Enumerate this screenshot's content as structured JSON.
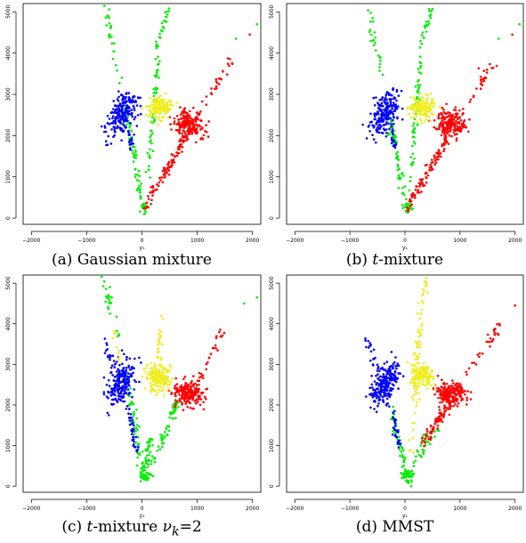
{
  "chart_data": [
    {
      "type": "scatter",
      "caption": {
        "label": "(a)",
        "text": "Gaussian mixture"
      },
      "xlabel": "y₁",
      "ylabel": "",
      "xlim": [
        -2150,
        2150
      ],
      "ylim": [
        -150,
        5200
      ],
      "xticks": [
        -2000,
        -1000,
        0,
        1000,
        2000
      ],
      "yticks": [
        0,
        1000,
        2000,
        3000,
        4000,
        5000
      ],
      "grid": false,
      "series": [
        {
          "color": "#0000ff",
          "centroid": [
            -350,
            2550
          ]
        },
        {
          "color": "#eeee22",
          "centroid": [
            300,
            2650
          ]
        },
        {
          "color": "#ff0000",
          "centroid": [
            900,
            2300
          ]
        },
        {
          "color": "#00ee00",
          "centroid": [
            150,
            2000
          ]
        }
      ]
    },
    {
      "type": "scatter",
      "caption": {
        "label": "(b)",
        "italic": "t",
        "text": "-mixture"
      },
      "xlabel": "y₁",
      "ylabel": "",
      "xlim": [
        -2150,
        2150
      ],
      "ylim": [
        -150,
        5200
      ],
      "xticks": [
        -2000,
        -1000,
        0,
        1000,
        2000
      ],
      "yticks": [
        0,
        1000,
        2000,
        3000,
        4000,
        5000
      ],
      "grid": false,
      "series": [
        {
          "color": "#0000ff",
          "centroid": [
            -350,
            2550
          ]
        },
        {
          "color": "#eeee22",
          "centroid": [
            300,
            2650
          ]
        },
        {
          "color": "#ff0000",
          "centroid": [
            900,
            2300
          ]
        },
        {
          "color": "#00ee00",
          "centroid": [
            150,
            2000
          ]
        }
      ]
    },
    {
      "type": "scatter",
      "caption": {
        "label": "(c)",
        "italic": "t",
        "text": "-mixture",
        "nu": "ν",
        "sub": "k",
        "eq": "=2"
      },
      "xlabel": "y₁",
      "ylabel": "",
      "xlim": [
        -2150,
        2150
      ],
      "ylim": [
        -150,
        5200
      ],
      "xticks": [
        -2000,
        -1000,
        0,
        1000,
        2000
      ],
      "yticks": [
        0,
        1000,
        2000,
        3000,
        4000,
        5000
      ],
      "grid": false,
      "series": [
        {
          "color": "#0000ff",
          "centroid": [
            -350,
            2550
          ]
        },
        {
          "color": "#eeee22",
          "centroid": [
            300,
            2650
          ]
        },
        {
          "color": "#ff0000",
          "centroid": [
            900,
            2300
          ]
        },
        {
          "color": "#00ee00",
          "centroid": [
            150,
            1700
          ]
        }
      ]
    },
    {
      "type": "scatter",
      "caption": {
        "label": "(d)",
        "text": "MMST"
      },
      "xlabel": "y₁",
      "ylabel": "",
      "xlim": [
        -2150,
        2150
      ],
      "ylim": [
        -150,
        5200
      ],
      "xticks": [
        -2000,
        -1000,
        0,
        1000,
        2000
      ],
      "yticks": [
        0,
        1000,
        2000,
        3000,
        4000,
        5000
      ],
      "grid": false,
      "series": [
        {
          "color": "#0000ff",
          "centroid": [
            -350,
            2550
          ]
        },
        {
          "color": "#eeee22",
          "centroid": [
            300,
            2800
          ]
        },
        {
          "color": "#ff0000",
          "centroid": [
            900,
            2400
          ]
        },
        {
          "color": "#00ee00",
          "centroid": [
            50,
            1000
          ]
        }
      ]
    }
  ]
}
